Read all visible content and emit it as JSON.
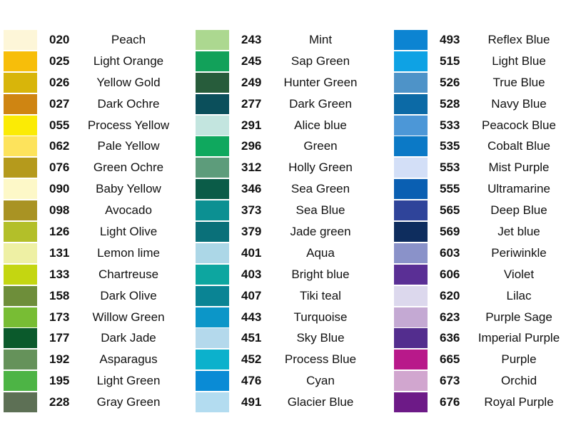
{
  "columns": [
    {
      "items": [
        {
          "code": "020",
          "name": "Peach",
          "color": "#fdf6d8"
        },
        {
          "code": "025",
          "name": "Light Orange",
          "color": "#f7be0a"
        },
        {
          "code": "026",
          "name": "Yellow Gold",
          "color": "#d8b50a"
        },
        {
          "code": "027",
          "name": "Dark Ochre",
          "color": "#cf8512"
        },
        {
          "code": "055",
          "name": "Process Yellow",
          "color": "#fbeb05"
        },
        {
          "code": "062",
          "name": "Pale Yellow",
          "color": "#fde35c"
        },
        {
          "code": "076",
          "name": "Green Ochre",
          "color": "#b59a1c"
        },
        {
          "code": "090",
          "name": "Baby Yellow",
          "color": "#fdf8c8"
        },
        {
          "code": "098",
          "name": "Avocado",
          "color": "#a99323"
        },
        {
          "code": "126",
          "name": "Light Olive",
          "color": "#b3bf29"
        },
        {
          "code": "131",
          "name": "Lemon lime",
          "color": "#eef0a4"
        },
        {
          "code": "133",
          "name": "Chartreuse",
          "color": "#c4d611"
        },
        {
          "code": "158",
          "name": "Dark Olive",
          "color": "#6e8e3a"
        },
        {
          "code": "173",
          "name": "Willow Green",
          "color": "#78bd34"
        },
        {
          "code": "177",
          "name": "Dark Jade",
          "color": "#0b5a2c"
        },
        {
          "code": "192",
          "name": "Asparagus",
          "color": "#65925a"
        },
        {
          "code": "195",
          "name": "Light Green",
          "color": "#4db445"
        },
        {
          "code": "228",
          "name": "Gray Green",
          "color": "#5d7055"
        }
      ]
    },
    {
      "items": [
        {
          "code": "243",
          "name": "Mint",
          "color": "#acd890"
        },
        {
          "code": "245",
          "name": "Sap Green",
          "color": "#12a15a"
        },
        {
          "code": "249",
          "name": "Hunter Green",
          "color": "#275c3b"
        },
        {
          "code": "277",
          "name": "Dark Green",
          "color": "#0b4f5b"
        },
        {
          "code": "291",
          "name": "Alice blue",
          "color": "#c3e5df"
        },
        {
          "code": "296",
          "name": "Green",
          "color": "#0fa85e"
        },
        {
          "code": "312",
          "name": "Holly Green",
          "color": "#5d9c7b"
        },
        {
          "code": "346",
          "name": "Sea Green",
          "color": "#0b5c48"
        },
        {
          "code": "373",
          "name": "Sea Blue",
          "color": "#0c9092"
        },
        {
          "code": "379",
          "name": "Jade green",
          "color": "#0a7079"
        },
        {
          "code": "401",
          "name": "Aqua",
          "color": "#acd7e7"
        },
        {
          "code": "403",
          "name": "Bright blue",
          "color": "#0da6a0"
        },
        {
          "code": "407",
          "name": "Tiki teal",
          "color": "#0a8494"
        },
        {
          "code": "443",
          "name": "Turquoise",
          "color": "#0c96c8"
        },
        {
          "code": "451",
          "name": "Sky Blue",
          "color": "#b4d9ec"
        },
        {
          "code": "452",
          "name": "Process Blue",
          "color": "#0cb1cc"
        },
        {
          "code": "476",
          "name": "Cyan",
          "color": "#0a8bd5"
        },
        {
          "code": "491",
          "name": "Glacier Blue",
          "color": "#b3dcf0"
        }
      ]
    },
    {
      "items": [
        {
          "code": "493",
          "name": "Reflex Blue",
          "color": "#0c84d2"
        },
        {
          "code": "515",
          "name": "Light Blue",
          "color": "#0ea2e4"
        },
        {
          "code": "526",
          "name": "True Blue",
          "color": "#4e93c8"
        },
        {
          "code": "528",
          "name": "Navy Blue",
          "color": "#0c6aa6"
        },
        {
          "code": "533",
          "name": "Peacock Blue",
          "color": "#4c97d7"
        },
        {
          "code": "535",
          "name": "Cobalt Blue",
          "color": "#0b79c6"
        },
        {
          "code": "553",
          "name": "Mist Purple",
          "color": "#d3dff7"
        },
        {
          "code": "555",
          "name": "Ultramarine",
          "color": "#0a5fb2"
        },
        {
          "code": "565",
          "name": "Deep Blue",
          "color": "#2f449a"
        },
        {
          "code": "569",
          "name": "Jet blue",
          "color": "#0e2d5e"
        },
        {
          "code": "603",
          "name": "Periwinkle",
          "color": "#8a92c9"
        },
        {
          "code": "606",
          "name": "Violet",
          "color": "#5a2f95"
        },
        {
          "code": "620",
          "name": "Lilac",
          "color": "#dcd8ed"
        },
        {
          "code": "623",
          "name": "Purple Sage",
          "color": "#c4a9d3"
        },
        {
          "code": "636",
          "name": "Imperial Purple",
          "color": "#532d8e"
        },
        {
          "code": "665",
          "name": "Purple",
          "color": "#b8198a"
        },
        {
          "code": "673",
          "name": "Orchid",
          "color": "#d1a6cf"
        },
        {
          "code": "676",
          "name": "Royal Purple",
          "color": "#6d1a87"
        }
      ]
    }
  ]
}
